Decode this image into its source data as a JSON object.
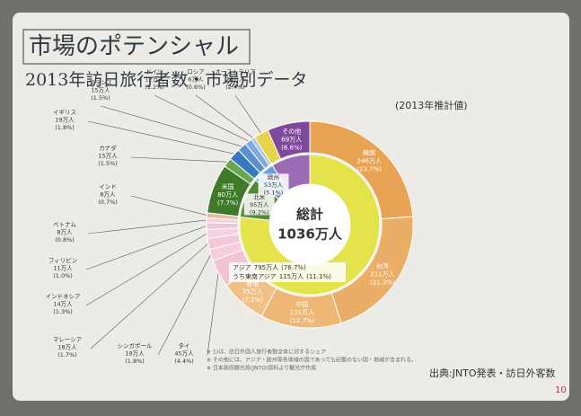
{
  "slide": {
    "title": "市場のポテンシャル",
    "subtitle": "2013年訪日旅行者数・市場別データ",
    "footnotes": [
      "※ 1)は、訪日外国人旅行者数全体に対するシェア",
      "※ その他には、アジア・欧州等各地域の国であっても記載のない国・地域が含まれる。",
      "※ 日本政府観光局(JNTO)資料より観光庁作成"
    ],
    "source": "出典:JNTO発表・訪日外客数",
    "page_number": 10
  },
  "chart_data": {
    "type": "pie",
    "note": "(2013年推計値)",
    "center_label": "総計",
    "total": "1036万人",
    "categories": [
      "韓国",
      "台湾",
      "中国",
      "香港",
      "タイ",
      "シンガポール",
      "マレーシア",
      "インドネシア",
      "フィリピン",
      "ベトナム",
      "インド",
      "米国",
      "カナダ",
      "イギリス",
      "フランス",
      "ドイツ",
      "ロシア",
      "オーストラリア",
      "その他"
    ],
    "values": [
      246,
      221,
      131,
      75,
      45,
      19,
      18,
      14,
      11,
      8,
      8,
      80,
      15,
      19,
      15,
      12,
      6,
      24,
      69
    ],
    "value_labels": [
      "246万人",
      "221万人",
      "131万人",
      "75万人",
      "45万人",
      "19万人",
      "18万人",
      "14万人",
      "11万人",
      "8万人",
      "8万人",
      "80万人",
      "15万人",
      "19万人",
      "15万人",
      "12万人",
      "6万人",
      "24万人",
      "69万人"
    ],
    "percent_labels": [
      "(23.7%)",
      "(21.3%)",
      "(12.7%)",
      "(7.2%)",
      "(4.4%)",
      "(1.8%)",
      "(1.7%)",
      "(1.3%)",
      "(1.0%)",
      "(0.8%)",
      "(0.7%)",
      "(7.7%)",
      "(1.5%)",
      "(1.8%)",
      "(1.5%)",
      "(1.2%)",
      "(0.6%)",
      "(2.4%)",
      "(6.6%)"
    ],
    "colors": [
      "#e8a455",
      "#eaae66",
      "#eeb775",
      "#f1c089",
      "#f2c3d5",
      "#f5cddc",
      "#f3c8d8",
      "#f6d2e0",
      "#f2c6d6",
      "#f5d0de",
      "#e9b9a6",
      "#3f7a2a",
      "#6aa84f",
      "#3a78c2",
      "#5b8fd0",
      "#7fa9dc",
      "#a8c4e6",
      "#e6d34a",
      "#7e4a9c"
    ],
    "inner": {
      "categories": [
        "アジア",
        "北米",
        "欧州",
        null
      ],
      "values": [
        795,
        95,
        53,
        93
      ],
      "value_labels": [
        "795万人",
        "95万人",
        "53万人",
        null
      ],
      "percent_labels": [
        "(76.7%)",
        "(9.2%)",
        "(5.1%)",
        null
      ],
      "colors": [
        "#e4e34c",
        "#4f8a33",
        "#6c9fd8",
        "#9b6bb5"
      ],
      "subgroup": {
        "label": "うち東南アジア",
        "value_label": "115万人",
        "percent_label": "(11.1%)"
      }
    }
  }
}
